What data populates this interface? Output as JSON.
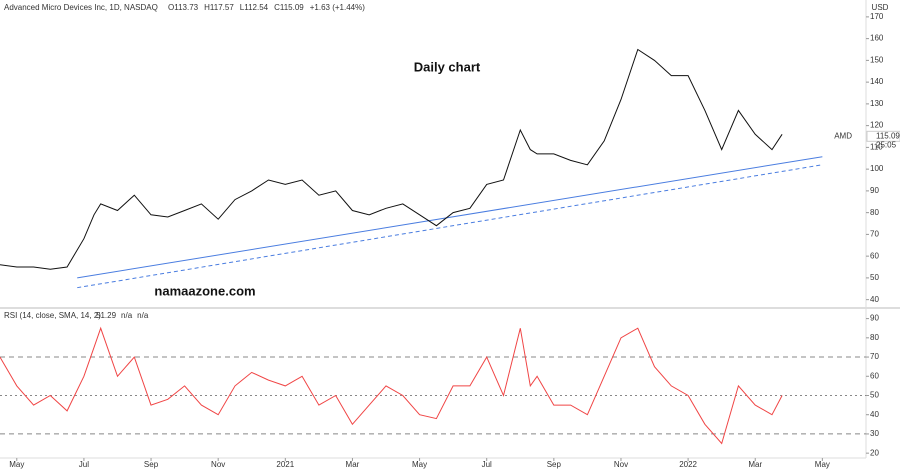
{
  "chart_data": [
    {
      "type": "line",
      "title": "Advanced Micro Devices Inc, 1D, NASDAQ",
      "ohlc": [
        "O113.73",
        "H117.57",
        "L112.54",
        "C115.09",
        "+1.63 (+1.44%)"
      ],
      "annotations": [
        "Daily chart",
        "namaazone.com"
      ],
      "currency": "USD",
      "symbol": "AMD",
      "last_price": 115.09,
      "countdown": "25:05",
      "series": [
        {
          "name": "AMD",
          "color": "#111111",
          "x": [
            3.5,
            4,
            4.5,
            5,
            5.5,
            6,
            6.3,
            6.5,
            7,
            7.5,
            8,
            8.5,
            9,
            9.5,
            10,
            10.5,
            11,
            11.5,
            12,
            12.5,
            13,
            13.5,
            14,
            14.5,
            15,
            15.5,
            16,
            16.5,
            17,
            17.5,
            18,
            18.5,
            19,
            19.3,
            19.5,
            20,
            20.5,
            21,
            21.5,
            22,
            22.5,
            23,
            23.5,
            24,
            24.5,
            25,
            25.5,
            26,
            26.5,
            26.8
          ],
          "values": [
            56,
            55,
            55,
            54,
            55,
            68,
            79,
            84,
            81,
            88,
            79,
            78,
            81,
            84,
            77,
            86,
            90,
            95,
            93,
            95,
            88,
            90,
            81,
            79,
            82,
            84,
            79,
            74,
            80,
            82,
            93,
            95,
            118,
            109,
            107,
            107,
            104,
            102,
            113,
            132,
            155,
            150,
            143,
            143,
            127,
            109,
            127,
            116,
            109,
            116
          ]
        }
      ],
      "trendlines": [
        {
          "color": "#4a7de0",
          "dash": false,
          "x": [
            5.8,
            28
          ],
          "values": [
            50,
            105.7
          ]
        },
        {
          "color": "#4a7de0",
          "dash": true,
          "x": [
            5.8,
            28
          ],
          "values": [
            45.5,
            102
          ]
        }
      ],
      "xlim": [
        3.5,
        29.3
      ],
      "ylim": [
        38,
        175
      ],
      "yticks": [
        40,
        50,
        60,
        70,
        80,
        90,
        100,
        110,
        120,
        130,
        140,
        150,
        160,
        170
      ]
    },
    {
      "type": "line",
      "title": "RSI (14, close, SMA, 14, 2)",
      "readout": [
        51.29,
        "n/a",
        "n/a"
      ],
      "series": [
        {
          "name": "RSI",
          "color": "#f04545",
          "x": [
            3.5,
            4,
            4.5,
            5,
            5.5,
            6,
            6.3,
            6.5,
            7,
            7.5,
            8,
            8.5,
            9,
            9.5,
            10,
            10.5,
            11,
            11.5,
            12,
            12.5,
            13,
            13.5,
            14,
            14.5,
            15,
            15.5,
            16,
            16.5,
            17,
            17.5,
            18,
            18.5,
            19,
            19.3,
            19.5,
            20,
            20.5,
            21,
            21.5,
            22,
            22.5,
            23,
            23.5,
            24,
            24.5,
            25,
            25.5,
            26,
            26.5,
            26.8
          ],
          "values": [
            70,
            55,
            45,
            50,
            42,
            60,
            75,
            85,
            60,
            70,
            45,
            48,
            55,
            45,
            40,
            55,
            62,
            58,
            55,
            60,
            45,
            50,
            35,
            45,
            55,
            50,
            40,
            38,
            55,
            55,
            70,
            50,
            85,
            55,
            60,
            45,
            45,
            40,
            60,
            80,
            85,
            65,
            55,
            50,
            35,
            25,
            55,
            45,
            40,
            50
          ]
        }
      ],
      "levels": [
        70,
        50,
        30
      ],
      "xlim": [
        3.5,
        29.3
      ],
      "ylim": [
        18,
        95
      ],
      "yticks": [
        20,
        30,
        40,
        50,
        60,
        70,
        80,
        90
      ],
      "xticks": [
        {
          "value": 4,
          "label": "May"
        },
        {
          "value": 6,
          "label": "Jul"
        },
        {
          "value": 8,
          "label": "Sep"
        },
        {
          "value": 10,
          "label": "Nov"
        },
        {
          "value": 12,
          "label": "2021"
        },
        {
          "value": 14,
          "label": "Mar"
        },
        {
          "value": 16,
          "label": "May"
        },
        {
          "value": 18,
          "label": "Jul"
        },
        {
          "value": 20,
          "label": "Sep"
        },
        {
          "value": 22,
          "label": "Nov"
        },
        {
          "value": 24,
          "label": "2022"
        },
        {
          "value": 26,
          "label": "Mar"
        },
        {
          "value": 28,
          "label": "May"
        }
      ]
    }
  ]
}
